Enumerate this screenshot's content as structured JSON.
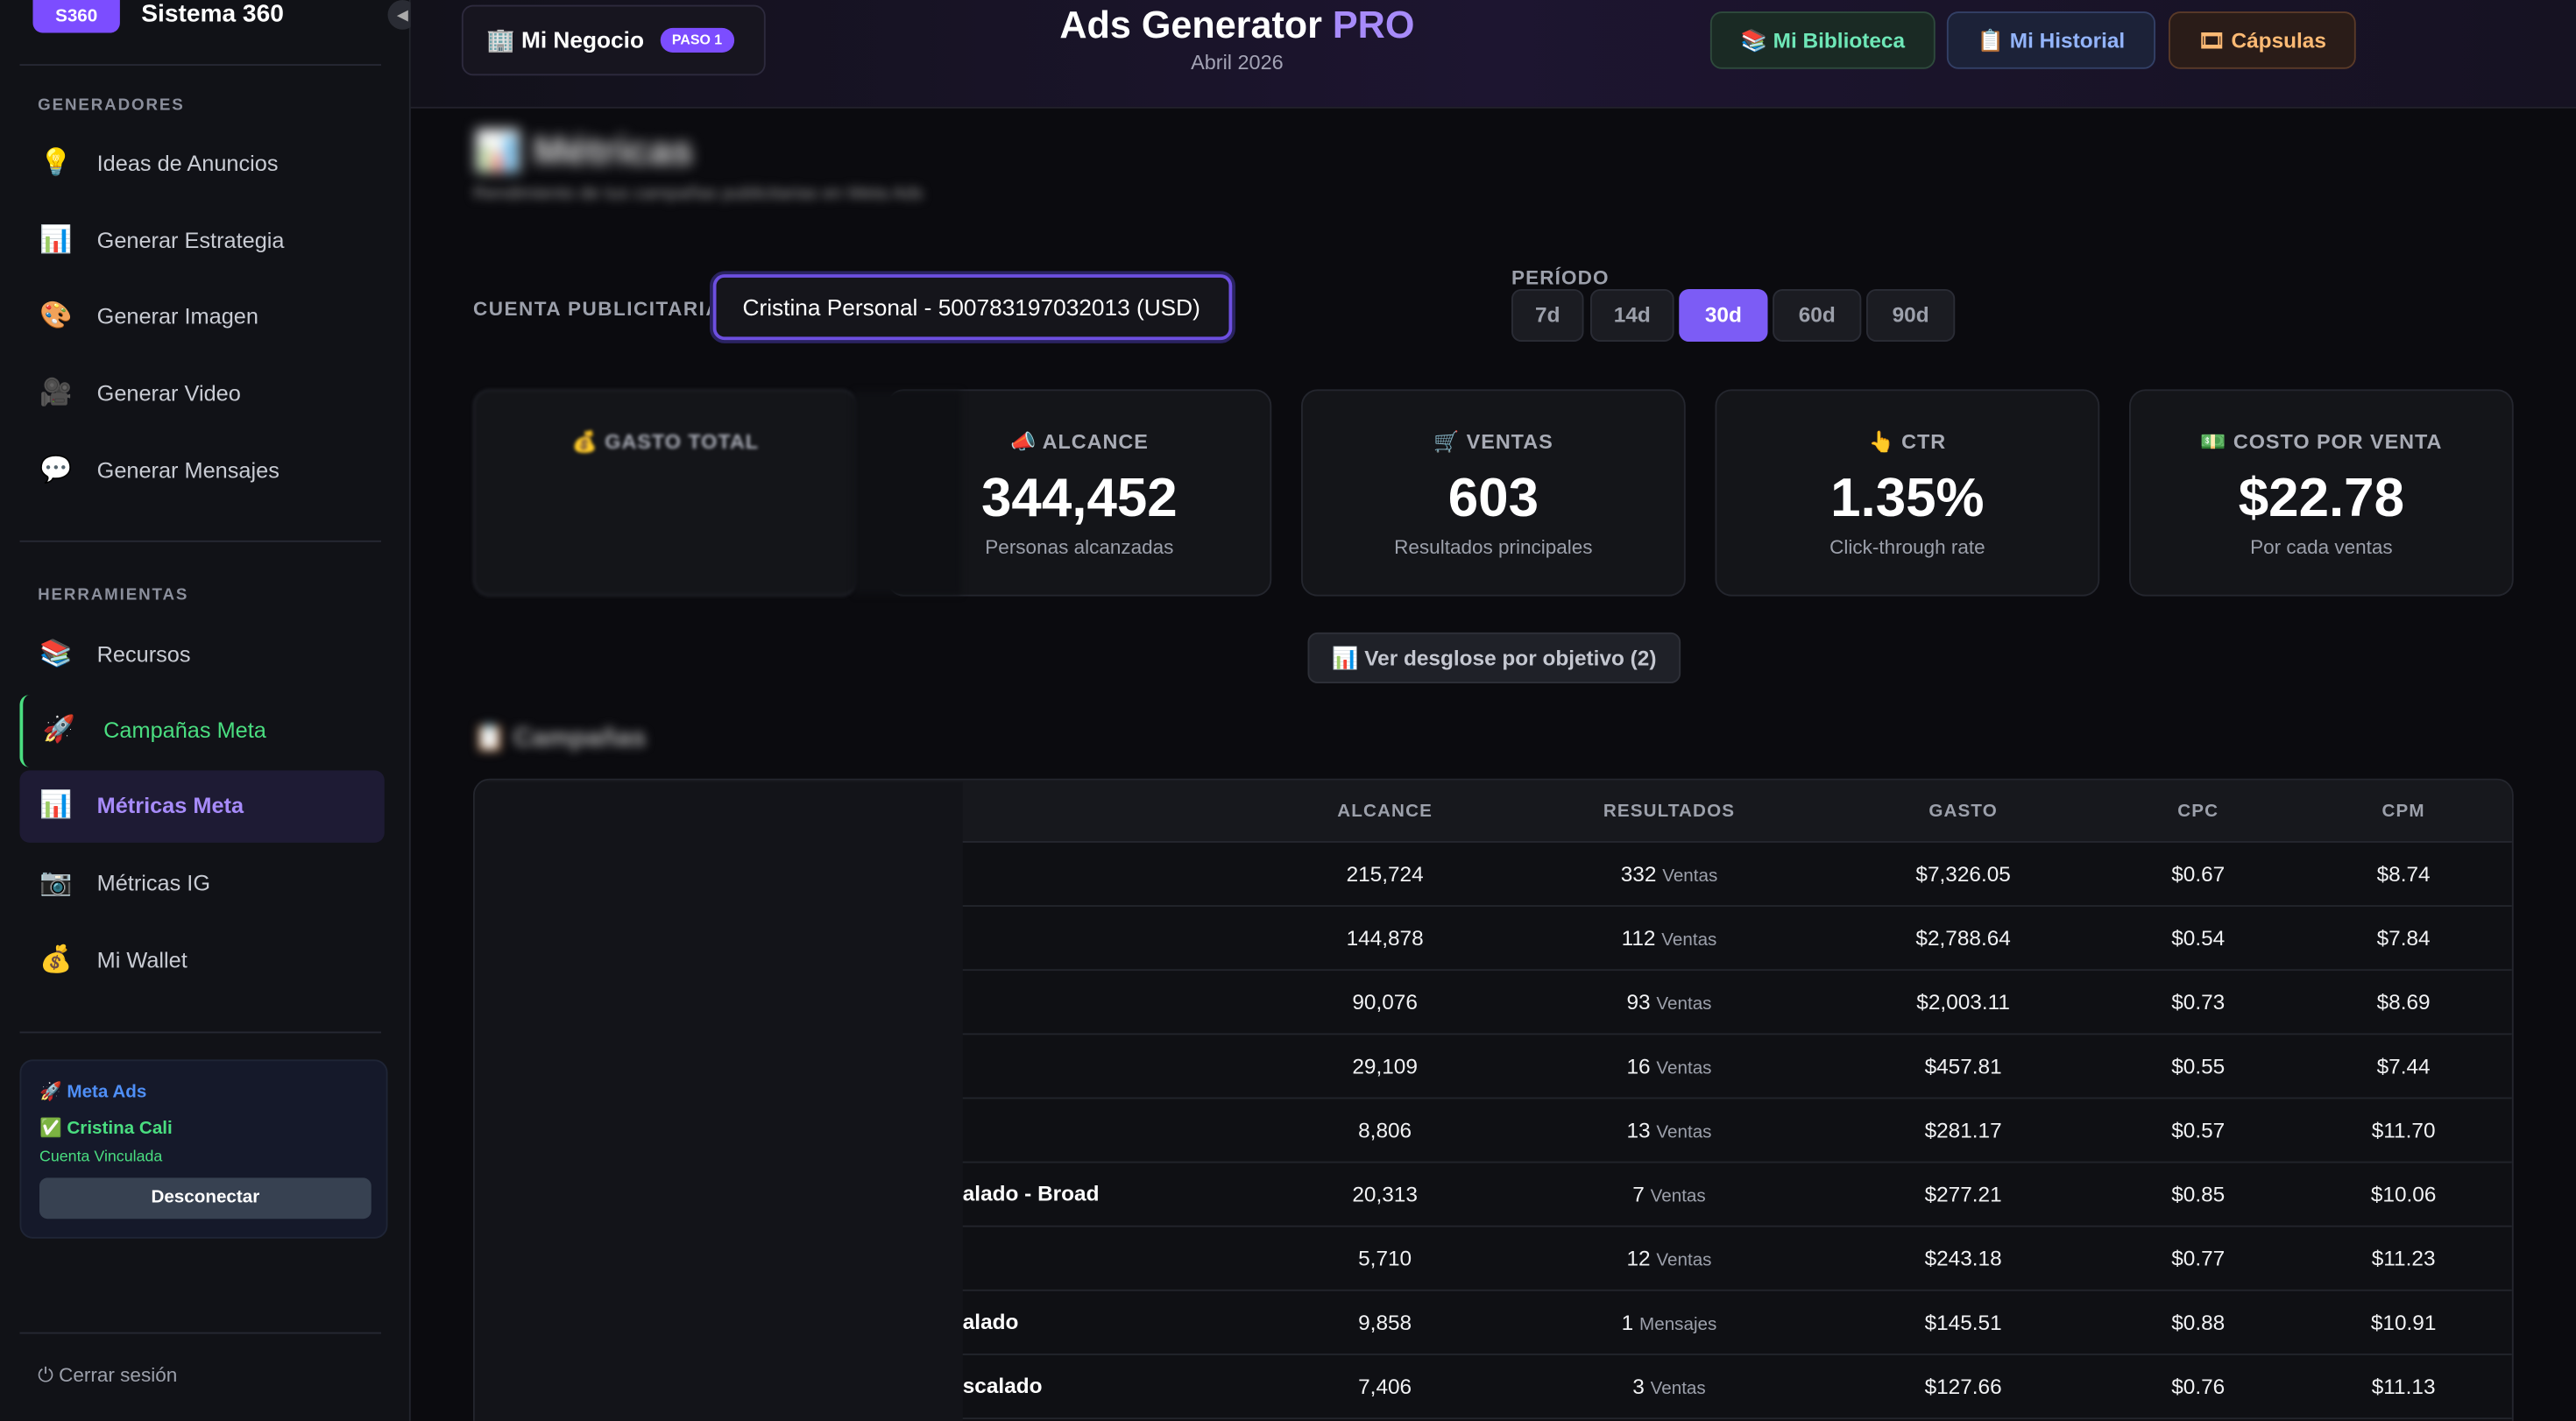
{
  "sidebar": {
    "logo_badge": "S360",
    "logo_text": "Sistema 360",
    "sections": [
      {
        "title": "GENERADORES",
        "items": [
          {
            "icon": "💡",
            "label": "Ideas de Anuncios"
          },
          {
            "icon": "📊",
            "label": "Generar Estrategia"
          },
          {
            "icon": "🎨",
            "label": "Generar Imagen"
          },
          {
            "icon": "🎥",
            "label": "Generar Video"
          },
          {
            "icon": "💬",
            "label": "Generar Mensajes"
          }
        ]
      },
      {
        "title": "HERRAMIENTAS",
        "items": [
          {
            "icon": "📚",
            "label": "Recursos"
          },
          {
            "icon": "🚀",
            "label": "Campañas Meta"
          },
          {
            "icon": "📊",
            "label": "Métricas Meta"
          },
          {
            "icon": "📷",
            "label": "Métricas IG"
          },
          {
            "icon": "💰",
            "label": "Mi Wallet"
          }
        ]
      }
    ],
    "meta_box": {
      "title": "🚀 Meta Ads",
      "account": "✅ Cristina Cali",
      "status": "Cuenta Vinculada",
      "button": "Desconectar"
    },
    "logout": "⏻ Cerrar sesión"
  },
  "header": {
    "business_button": "🏢 Mi Negocio",
    "step_badge": "PASO 1",
    "title": "Ads Generator",
    "title_accent": "PRO",
    "subtitle": "Abril 2026",
    "buttons": [
      {
        "label": "📚 Mi Biblioteca"
      },
      {
        "label": "📋 Mi Historial"
      },
      {
        "label": "🎞 Cápsulas"
      }
    ]
  },
  "page": {
    "title": "📊 Métricas",
    "subtitle": "Rendimiento de tus campañas publicitarias en Meta Ads",
    "account_label": "CUENTA PUBLICITARIA",
    "account_value": "Cristina Personal - 500783197032013 (USD)",
    "period_label": "PERÍODO",
    "periods": [
      "7d",
      "14d",
      "30d",
      "60d",
      "90d"
    ],
    "cards": [
      {
        "label": "💰 GASTO TOTAL"
      },
      {
        "label": "📣 ALCANCE",
        "value": "344,452",
        "sub": "Personas alcanzadas"
      },
      {
        "label": "🛒 VENTAS",
        "value": "603",
        "sub": "Resultados principales"
      },
      {
        "label": "👆 CTR",
        "value": "1.35%",
        "sub": "Click-through rate"
      },
      {
        "label": "💵 COSTO POR VENTA",
        "value": "$22.78",
        "sub": "Por cada ventas"
      }
    ],
    "breakdown_button": "📊 Ver desglose por objetivo (2)",
    "campaigns_title": "📋 Campañas"
  },
  "table": {
    "headers": [
      "ALCANCE",
      "RESULTADOS",
      "GASTO",
      "CPC",
      "CPM"
    ],
    "rows": [
      {
        "reach": "215,724",
        "results": "332",
        "unit": "Ventas",
        "spend": "$7,326.05",
        "cpc": "$0.67",
        "cpm": "$8.74"
      },
      {
        "reach": "144,878",
        "results": "112",
        "unit": "Ventas",
        "spend": "$2,788.64",
        "cpc": "$0.54",
        "cpm": "$7.84"
      },
      {
        "reach": "90,076",
        "results": "93",
        "unit": "Ventas",
        "spend": "$2,003.11",
        "cpc": "$0.73",
        "cpm": "$8.69"
      },
      {
        "reach": "29,109",
        "results": "16",
        "unit": "Ventas",
        "spend": "$457.81",
        "cpc": "$0.55",
        "cpm": "$7.44"
      },
      {
        "reach": "8,806",
        "results": "13",
        "unit": "Ventas",
        "spend": "$281.17",
        "cpc": "$0.57",
        "cpm": "$11.70"
      },
      {
        "name": "alado - Broad",
        "reach": "20,313",
        "results": "7",
        "unit": "Ventas",
        "spend": "$277.21",
        "cpc": "$0.85",
        "cpm": "$10.06"
      },
      {
        "reach": "5,710",
        "results": "12",
        "unit": "Ventas",
        "spend": "$243.18",
        "cpc": "$0.77",
        "cpm": "$11.23"
      },
      {
        "name": "alado",
        "reach": "9,858",
        "results": "1",
        "unit": "Mensajes",
        "spend": "$145.51",
        "cpc": "$0.88",
        "cpm": "$10.91"
      },
      {
        "name": "scalado",
        "reach": "7,406",
        "results": "3",
        "unit": "Ventas",
        "spend": "$127.66",
        "cpc": "$0.76",
        "cpm": "$11.13"
      }
    ]
  }
}
